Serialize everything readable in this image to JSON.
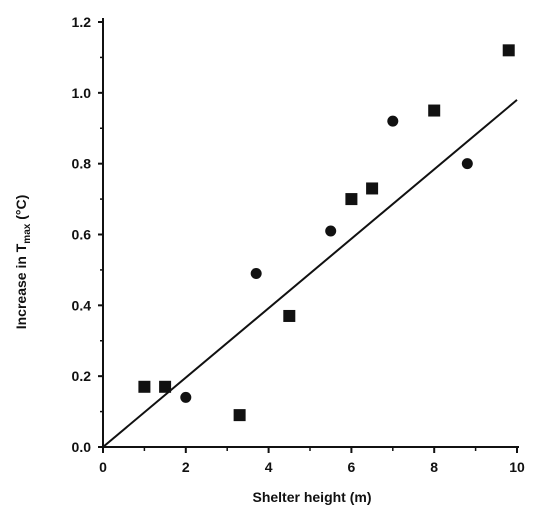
{
  "chart_data": {
    "type": "scatter",
    "xlabel": "Shelter height (m)",
    "ylabel_main": "Increase in T",
    "ylabel_sub": "max",
    "ylabel_tail": " (°C)",
    "xlim": [
      0,
      10
    ],
    "ylim": [
      0,
      1.2
    ],
    "x_ticks": [
      "0",
      "2",
      "4",
      "6",
      "8",
      "10"
    ],
    "y_ticks": [
      "0.0",
      "0.2",
      "0.4",
      "0.6",
      "0.8",
      "1.0",
      "1.2"
    ],
    "series": [
      {
        "marker": "square",
        "points": [
          {
            "x": 1.0,
            "y": 0.17
          },
          {
            "x": 1.5,
            "y": 0.17
          },
          {
            "x": 3.3,
            "y": 0.09
          },
          {
            "x": 4.5,
            "y": 0.37
          },
          {
            "x": 6.0,
            "y": 0.7
          },
          {
            "x": 6.5,
            "y": 0.73
          },
          {
            "x": 8.0,
            "y": 0.95
          },
          {
            "x": 9.8,
            "y": 1.12
          }
        ]
      },
      {
        "marker": "circle",
        "points": [
          {
            "x": 2.0,
            "y": 0.14
          },
          {
            "x": 3.7,
            "y": 0.49
          },
          {
            "x": 5.5,
            "y": 0.61
          },
          {
            "x": 7.0,
            "y": 0.92
          },
          {
            "x": 8.8,
            "y": 0.8
          }
        ]
      }
    ],
    "fit_line": {
      "x0": 0,
      "y0": 0,
      "x1": 10,
      "y1": 0.98
    },
    "grid": false,
    "colors": {
      "ink": "#111111",
      "background": "#ffffff"
    }
  }
}
